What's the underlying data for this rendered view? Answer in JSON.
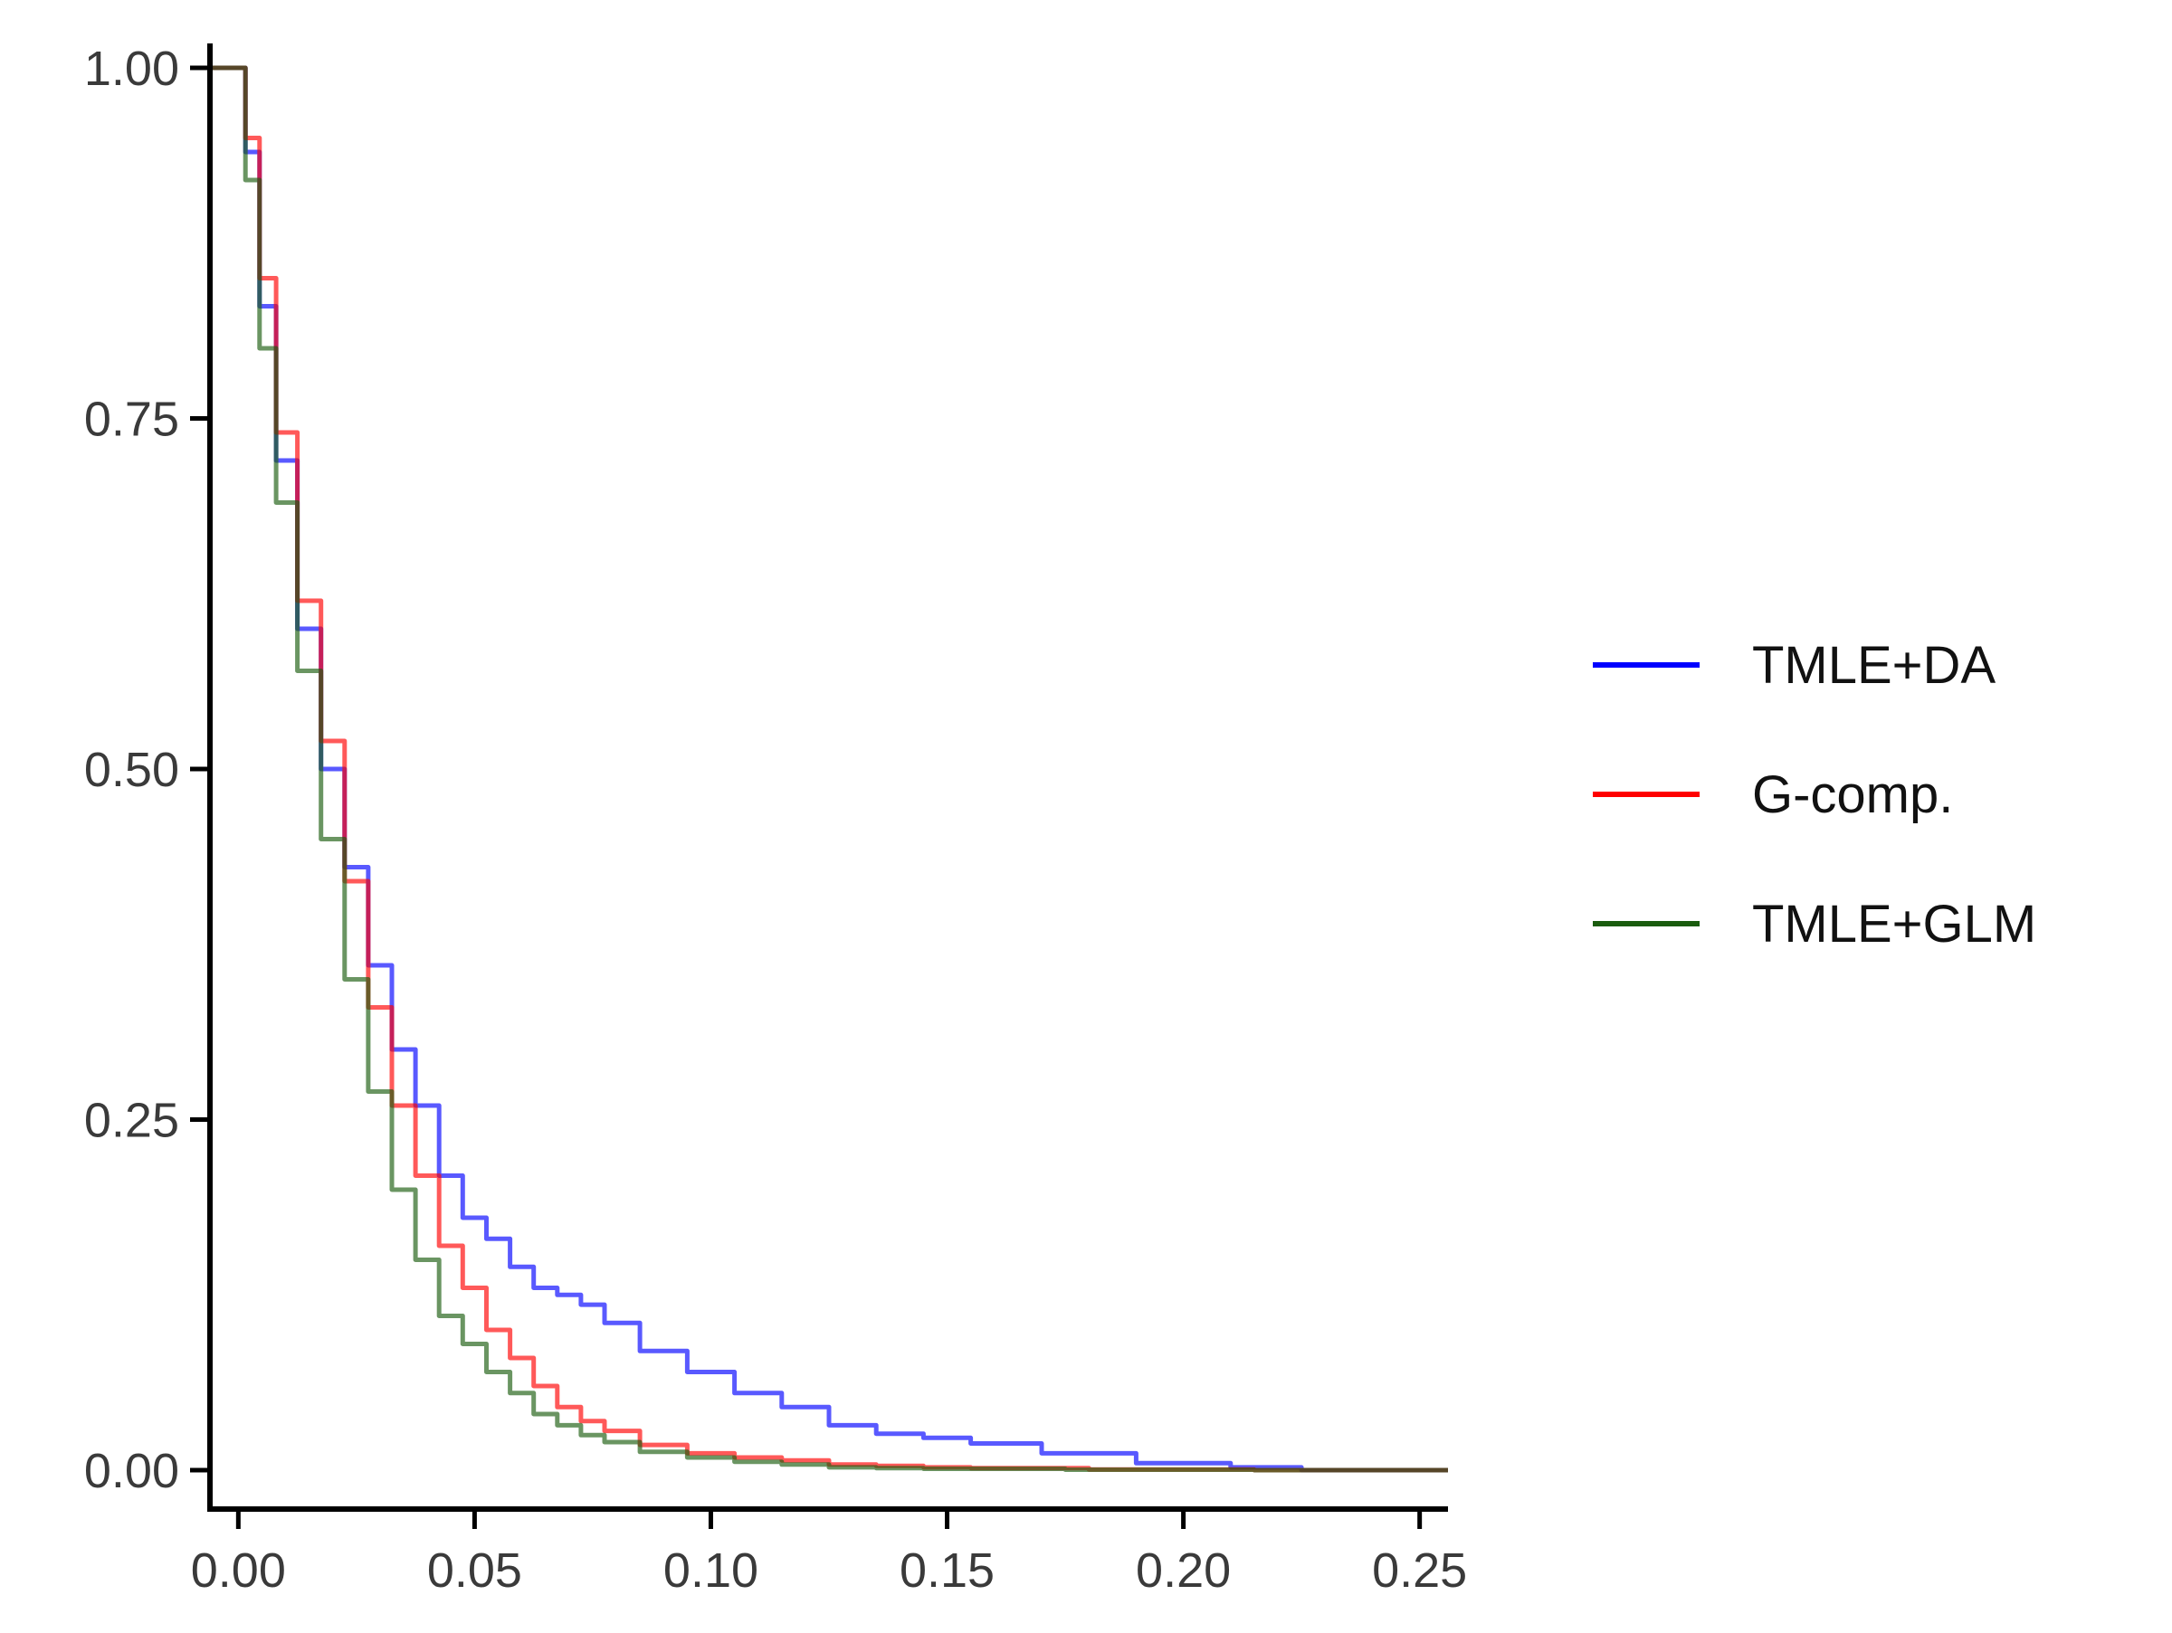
{
  "chart_data": {
    "type": "line",
    "title": "",
    "xlabel": "",
    "ylabel": "",
    "xlim": [
      -0.006,
      0.256
    ],
    "ylim": [
      -0.02,
      1.02
    ],
    "x_ticks": [
      0.0,
      0.05,
      0.1,
      0.15,
      0.2,
      0.25
    ],
    "x_tick_labels": [
      "0.00",
      "0.05",
      "0.10",
      "0.15",
      "0.20",
      "0.25"
    ],
    "y_ticks": [
      0.0,
      0.25,
      0.5,
      0.75,
      1.0
    ],
    "y_tick_labels": [
      "0.00",
      "0.25",
      "0.50",
      "0.75",
      "1.00"
    ],
    "grid": false,
    "legend_position": "right",
    "series": [
      {
        "name": "TMLE+DA",
        "color": "#0000ff",
        "x": [
          -0.006,
          0.0,
          0.003,
          0.006,
          0.01,
          0.015,
          0.02,
          0.025,
          0.03,
          0.035,
          0.04,
          0.045,
          0.05,
          0.055,
          0.06,
          0.065,
          0.07,
          0.075,
          0.08,
          0.09,
          0.1,
          0.11,
          0.12,
          0.13,
          0.14,
          0.15,
          0.16,
          0.18,
          0.2,
          0.22,
          0.23,
          0.256
        ],
        "y": [
          1.0,
          1.0,
          0.94,
          0.83,
          0.72,
          0.6,
          0.5,
          0.43,
          0.36,
          0.3,
          0.26,
          0.21,
          0.18,
          0.165,
          0.145,
          0.13,
          0.125,
          0.118,
          0.105,
          0.085,
          0.07,
          0.055,
          0.045,
          0.032,
          0.026,
          0.023,
          0.019,
          0.012,
          0.005,
          0.002,
          0.0,
          0.0
        ]
      },
      {
        "name": "G-comp.",
        "color": "#ff0000",
        "x": [
          -0.006,
          0.0,
          0.003,
          0.006,
          0.01,
          0.015,
          0.02,
          0.025,
          0.03,
          0.035,
          0.04,
          0.045,
          0.05,
          0.055,
          0.06,
          0.065,
          0.07,
          0.075,
          0.08,
          0.09,
          0.1,
          0.11,
          0.12,
          0.13,
          0.14,
          0.15,
          0.16,
          0.2,
          0.23,
          0.256
        ],
        "y": [
          1.0,
          1.0,
          0.95,
          0.85,
          0.74,
          0.62,
          0.52,
          0.42,
          0.33,
          0.26,
          0.21,
          0.16,
          0.13,
          0.1,
          0.08,
          0.06,
          0.045,
          0.035,
          0.028,
          0.018,
          0.012,
          0.009,
          0.007,
          0.004,
          0.003,
          0.002,
          0.0015,
          0.0005,
          0.0,
          0.0
        ]
      },
      {
        "name": "TMLE+GLM",
        "color": "#1a5c0e",
        "x": [
          -0.006,
          0.0,
          0.003,
          0.006,
          0.01,
          0.015,
          0.02,
          0.025,
          0.03,
          0.035,
          0.04,
          0.045,
          0.05,
          0.055,
          0.06,
          0.065,
          0.07,
          0.075,
          0.08,
          0.09,
          0.1,
          0.11,
          0.12,
          0.13,
          0.14,
          0.15,
          0.2,
          0.23,
          0.256
        ],
        "y": [
          1.0,
          1.0,
          0.92,
          0.8,
          0.69,
          0.57,
          0.45,
          0.35,
          0.27,
          0.2,
          0.15,
          0.11,
          0.09,
          0.07,
          0.055,
          0.04,
          0.032,
          0.025,
          0.02,
          0.013,
          0.009,
          0.006,
          0.004,
          0.002,
          0.0015,
          0.001,
          0.0003,
          0.0,
          0.0
        ]
      }
    ]
  }
}
